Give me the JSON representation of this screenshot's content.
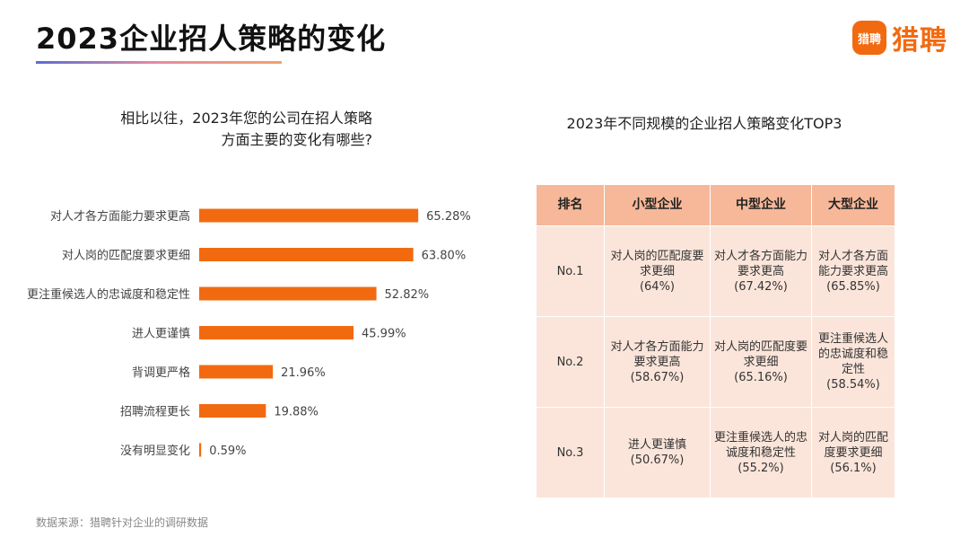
{
  "header": {
    "title": "2023企业招人策略的变化"
  },
  "logo": {
    "badge": "猎聘",
    "text": "猎聘",
    "color": "#f26a10"
  },
  "left_chart": {
    "question_lines": [
      "相比以往，2023年您的公司在招人策略",
      "方面主要的变化有哪些?"
    ]
  },
  "chart_data": {
    "type": "bar",
    "orientation": "horizontal",
    "categories": [
      "对人才各方面能力要求更高",
      "对人岗的匹配度要求更细",
      "更注重候选人的忠诚度和稳定性",
      "进人更谨慎",
      "背调更严格",
      "招聘流程更长",
      "没有明显变化"
    ],
    "values": [
      65.28,
      63.8,
      52.82,
      45.99,
      21.96,
      19.88,
      0.59
    ],
    "value_labels": [
      "65.28%",
      "63.80%",
      "52.82%",
      "45.99%",
      "21.96%",
      "19.88%",
      "0.59%"
    ],
    "bar_color": "#f26a10",
    "xlim": [
      0,
      100
    ],
    "grid": false,
    "legend": "none"
  },
  "table": {
    "title": "2023年不同规模的企业招人策略变化TOP3",
    "headers": [
      "排名",
      "小型企业",
      "中型企业",
      "大型企业"
    ],
    "rows": [
      {
        "rank": "No.1",
        "cells": [
          [
            "对人岗的匹配度要求更细",
            "(64%)"
          ],
          [
            "对人才各方面能力要求更高",
            "(67.42%)"
          ],
          [
            "对人才各方面能力要求更高",
            "(65.85%)"
          ]
        ]
      },
      {
        "rank": "No.2",
        "cells": [
          [
            "对人才各方面能力要求更高",
            "(58.67%)"
          ],
          [
            "对人岗的匹配度要求更细",
            "(65.16%)"
          ],
          [
            "更注重候选人的忠诚度和稳定性",
            "(58.54%)"
          ]
        ]
      },
      {
        "rank": "No.3",
        "cells": [
          [
            "进人更谨慎",
            "(50.67%)"
          ],
          [
            "更注重候选人的忠诚度和稳定性",
            "(55.2%)"
          ],
          [
            "对人岗的匹配度要求更细",
            "(56.1%)"
          ]
        ]
      }
    ],
    "header_color": "#f7b899",
    "cell_color": "#fbe5da"
  },
  "footer": {
    "source": "数据来源：猎聘针对企业的调研数据"
  }
}
